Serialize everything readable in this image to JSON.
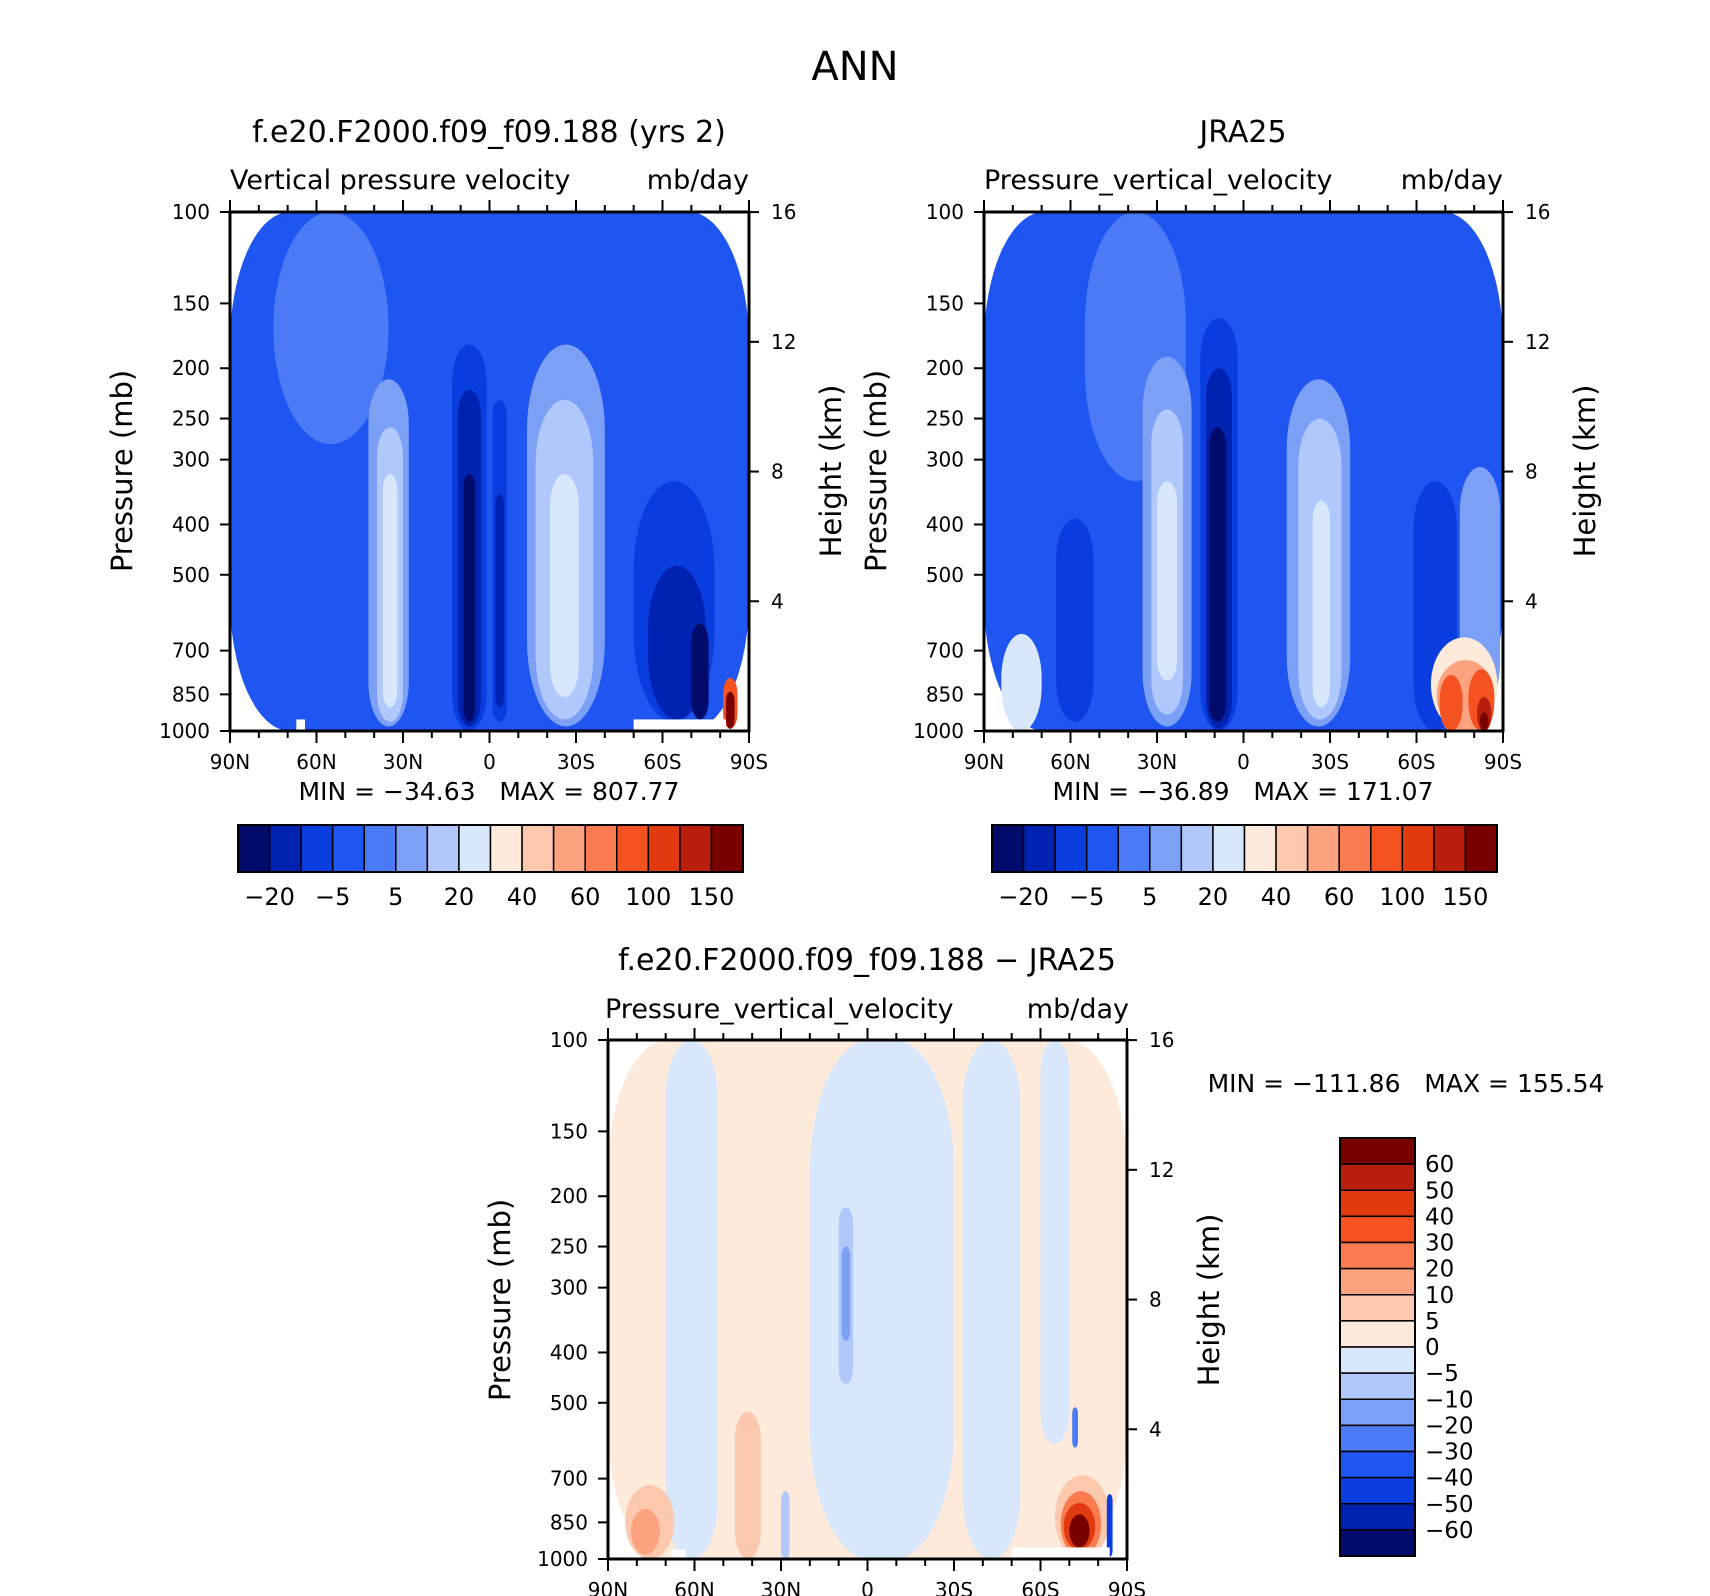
{
  "figure_title": "ANN",
  "chart_data": [
    {
      "type": "heatmap",
      "title": "f.e20.F2000.f09_f09.188 (yrs 2)",
      "subtitle_left": "Vertical pressure velocity",
      "subtitle_right": "mb/day",
      "xlabel": "",
      "ylabel": "Pressure (mb)",
      "y2label": "Height (km)",
      "x_ticks": [
        "90N",
        "60N",
        "30N",
        "0",
        "30S",
        "60S",
        "90S"
      ],
      "y_ticks": [
        100,
        150,
        200,
        250,
        300,
        400,
        500,
        700,
        850,
        1000
      ],
      "y2_ticks": [
        16,
        12,
        8,
        4
      ],
      "ylim": [
        100,
        1000
      ],
      "stats_text": "MIN = −34.63   MAX = 807.77",
      "min": -34.63,
      "max": 807.77,
      "colorbar": {
        "orientation": "horizontal",
        "labels": [
          "−20",
          "−5",
          "5",
          "20",
          "40",
          "60",
          "100",
          "150"
        ],
        "colors": [
          "#000b6b",
          "#0022b0",
          "#0a3de0",
          "#1f55f0",
          "#4a7af5",
          "#7da0f7",
          "#b0c8fb",
          "#d8e7fc",
          "#fdeada",
          "#fcc9ae",
          "#fca27f",
          "#fb7a4f",
          "#f55222",
          "#e03a0e",
          "#b81f0c",
          "#7a0000"
        ]
      },
      "regions": [
        {
          "level": 3,
          "x": [
            0,
            180
          ],
          "p": [
            100,
            1000
          ]
        },
        {
          "level": 4,
          "x": [
            15,
            55
          ],
          "p": [
            100,
            280
          ]
        },
        {
          "level": 5,
          "x": [
            48,
            62
          ],
          "p": [
            210,
            980
          ]
        },
        {
          "level": 6,
          "x": [
            51,
            60
          ],
          "p": [
            260,
            960
          ]
        },
        {
          "level": 7,
          "x": [
            53,
            58
          ],
          "p": [
            320,
            900
          ]
        },
        {
          "level": 2,
          "x": [
            77,
            89
          ],
          "p": [
            180,
            1000
          ]
        },
        {
          "level": 1,
          "x": [
            79,
            87
          ],
          "p": [
            220,
            980
          ]
        },
        {
          "level": 0,
          "x": [
            81,
            85
          ],
          "p": [
            320,
            960
          ]
        },
        {
          "level": 2,
          "x": [
            91,
            96
          ],
          "p": [
            230,
            960
          ]
        },
        {
          "level": 1,
          "x": [
            92,
            95
          ],
          "p": [
            350,
            900
          ]
        },
        {
          "level": 5,
          "x": [
            103,
            130
          ],
          "p": [
            180,
            980
          ]
        },
        {
          "level": 6,
          "x": [
            106,
            126
          ],
          "p": [
            230,
            950
          ]
        },
        {
          "level": 7,
          "x": [
            111,
            121
          ],
          "p": [
            320,
            860
          ]
        },
        {
          "level": 2,
          "x": [
            140,
            168
          ],
          "p": [
            330,
            960
          ]
        },
        {
          "level": 1,
          "x": [
            145,
            165
          ],
          "p": [
            480,
            950
          ]
        },
        {
          "level": 0,
          "x": [
            160,
            166
          ],
          "p": [
            620,
            950
          ]
        },
        {
          "level": 12,
          "x": [
            171,
            176
          ],
          "p": [
            790,
            990
          ]
        },
        {
          "level": 15,
          "x": [
            172,
            175
          ],
          "p": [
            840,
            990
          ]
        }
      ],
      "missing": [
        {
          "x": [
            23,
            26
          ],
          "p": [
            950,
            1000
          ]
        },
        {
          "x": [
            140,
            172
          ],
          "p": [
            950,
            1000
          ]
        }
      ]
    },
    {
      "type": "heatmap",
      "title": "JRA25",
      "subtitle_left": "Pressure_vertical_velocity",
      "subtitle_right": "mb/day",
      "xlabel": "",
      "ylabel": "Pressure (mb)",
      "y2label": "Height (km)",
      "x_ticks": [
        "90N",
        "60N",
        "30N",
        "0",
        "30S",
        "60S",
        "90S"
      ],
      "y_ticks": [
        100,
        150,
        200,
        250,
        300,
        400,
        500,
        700,
        850,
        1000
      ],
      "y2_ticks": [
        16,
        12,
        8,
        4
      ],
      "ylim": [
        100,
        1000
      ],
      "stats_text": "MIN = −36.89   MAX = 171.07",
      "min": -36.89,
      "max": 171.07,
      "colorbar": {
        "orientation": "horizontal",
        "labels": [
          "−20",
          "−5",
          "5",
          "20",
          "40",
          "60",
          "100",
          "150"
        ],
        "colors": [
          "#000b6b",
          "#0022b0",
          "#0a3de0",
          "#1f55f0",
          "#4a7af5",
          "#7da0f7",
          "#b0c8fb",
          "#d8e7fc",
          "#fdeada",
          "#fcc9ae",
          "#fca27f",
          "#fb7a4f",
          "#f55222",
          "#e03a0e",
          "#b81f0c",
          "#7a0000"
        ]
      },
      "regions": [
        {
          "level": 3,
          "x": [
            0,
            180
          ],
          "p": [
            100,
            1000
          ]
        },
        {
          "level": 4,
          "x": [
            35,
            70
          ],
          "p": [
            100,
            330
          ]
        },
        {
          "level": 2,
          "x": [
            25,
            38
          ],
          "p": [
            390,
            960
          ]
        },
        {
          "level": 5,
          "x": [
            55,
            72
          ],
          "p": [
            190,
            980
          ]
        },
        {
          "level": 6,
          "x": [
            58,
            69
          ],
          "p": [
            240,
            930
          ]
        },
        {
          "level": 7,
          "x": [
            60,
            67
          ],
          "p": [
            330,
            800
          ]
        },
        {
          "level": 2,
          "x": [
            75,
            88
          ],
          "p": [
            160,
            1000
          ]
        },
        {
          "level": 1,
          "x": [
            77,
            86
          ],
          "p": [
            200,
            990
          ]
        },
        {
          "level": 0,
          "x": [
            78,
            84
          ],
          "p": [
            260,
            960
          ]
        },
        {
          "level": 5,
          "x": [
            105,
            127
          ],
          "p": [
            210,
            980
          ]
        },
        {
          "level": 6,
          "x": [
            109,
            124
          ],
          "p": [
            250,
            950
          ]
        },
        {
          "level": 7,
          "x": [
            114,
            120
          ],
          "p": [
            360,
            900
          ]
        },
        {
          "level": 2,
          "x": [
            149,
            164
          ],
          "p": [
            330,
            1000
          ]
        },
        {
          "level": 5,
          "x": [
            165,
            179
          ],
          "p": [
            310,
            900
          ]
        },
        {
          "level": 7,
          "x": [
            6,
            20
          ],
          "p": [
            650,
            1000
          ]
        },
        {
          "level": 8,
          "x": [
            155,
            178
          ],
          "p": [
            660,
            1000
          ]
        },
        {
          "level": 10,
          "x": [
            157,
            177
          ],
          "p": [
            730,
            1000
          ]
        },
        {
          "level": 12,
          "x": [
            158,
            166
          ],
          "p": [
            780,
            1000
          ]
        },
        {
          "level": 12,
          "x": [
            168,
            177
          ],
          "p": [
            760,
            1000
          ]
        },
        {
          "level": 14,
          "x": [
            171,
            176
          ],
          "p": [
            860,
            1000
          ]
        },
        {
          "level": 15,
          "x": [
            172,
            175
          ],
          "p": [
            920,
            1000
          ]
        }
      ],
      "missing": []
    },
    {
      "type": "heatmap",
      "title": "f.e20.F2000.f09_f09.188 − JRA25",
      "subtitle_left": "Pressure_vertical_velocity",
      "subtitle_right": "mb/day",
      "xlabel": "",
      "ylabel": "Pressure (mb)",
      "y2label": "Height (km)",
      "x_ticks": [
        "90N",
        "60N",
        "30N",
        "0",
        "30S",
        "60S",
        "90S"
      ],
      "y_ticks": [
        100,
        150,
        200,
        250,
        300,
        400,
        500,
        700,
        850,
        1000
      ],
      "y2_ticks": [
        16,
        12,
        8,
        4
      ],
      "ylim": [
        100,
        1000
      ],
      "stats_text": "MIN = −111.86   MAX = 155.54",
      "min": -111.86,
      "max": 155.54,
      "colorbar": {
        "orientation": "vertical",
        "labels": [
          "60",
          "50",
          "40",
          "30",
          "20",
          "10",
          "5",
          "0",
          "−5",
          "−10",
          "−20",
          "−30",
          "−40",
          "−50",
          "−60"
        ],
        "colors": [
          "#7a0000",
          "#b81f0c",
          "#e03a0e",
          "#f55222",
          "#fb7a4f",
          "#fca27f",
          "#fcc9ae",
          "#fdeada",
          "#d8e7fc",
          "#b0c8fb",
          "#7da0f7",
          "#4a7af5",
          "#1f55f0",
          "#0a3de0",
          "#0022b0",
          "#000b6b"
        ]
      },
      "regions": [
        {
          "level": 7,
          "x": [
            0,
            180
          ],
          "p": [
            100,
            1000
          ]
        },
        {
          "level": 8,
          "x": [
            20,
            38
          ],
          "p": [
            100,
            1000
          ]
        },
        {
          "level": 8,
          "x": [
            70,
            120
          ],
          "p": [
            100,
            1000
          ]
        },
        {
          "level": 8,
          "x": [
            123,
            143
          ],
          "p": [
            100,
            1000
          ]
        },
        {
          "level": 8,
          "x": [
            150,
            160
          ],
          "p": [
            100,
            600
          ]
        },
        {
          "level": 9,
          "x": [
            80,
            85
          ],
          "p": [
            210,
            460
          ]
        },
        {
          "level": 10,
          "x": [
            81,
            84
          ],
          "p": [
            250,
            380
          ]
        },
        {
          "level": 9,
          "x": [
            60,
            63
          ],
          "p": [
            740,
            1000
          ]
        },
        {
          "level": 6,
          "x": [
            6,
            23
          ],
          "p": [
            720,
            1000
          ]
        },
        {
          "level": 5,
          "x": [
            8,
            18
          ],
          "p": [
            800,
            980
          ]
        },
        {
          "level": 6,
          "x": [
            44,
            53
          ],
          "p": [
            520,
            1000
          ]
        },
        {
          "level": 6,
          "x": [
            155,
            174
          ],
          "p": [
            690,
            1000
          ]
        },
        {
          "level": 4,
          "x": [
            157,
            171
          ],
          "p": [
            740,
            990
          ]
        },
        {
          "level": 2,
          "x": [
            158,
            169
          ],
          "p": [
            780,
            960
          ]
        },
        {
          "level": 0,
          "x": [
            160,
            167
          ],
          "p": [
            820,
            950
          ]
        },
        {
          "level": 11,
          "x": [
            161,
            163
          ],
          "p": [
            510,
            610
          ]
        },
        {
          "level": 13,
          "x": [
            173,
            175
          ],
          "p": [
            750,
            990
          ]
        }
      ],
      "missing": [
        {
          "x": [
            22,
            27
          ],
          "p": [
            960,
            1000
          ]
        },
        {
          "x": [
            140,
            174
          ],
          "p": [
            950,
            1000
          ]
        }
      ]
    }
  ]
}
